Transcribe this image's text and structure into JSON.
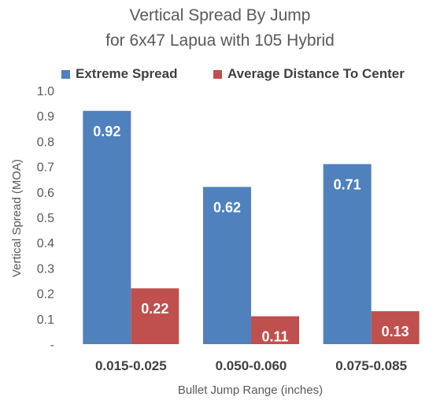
{
  "chart_data": {
    "type": "bar",
    "title": "Vertical Spread By Jump",
    "subtitle": "for 6x47 Lapua with 105 Hybrid",
    "xlabel": "Bullet Jump Range (inches)",
    "ylabel": "Vertical Spread (MOA)",
    "categories": [
      "0.015-0.025",
      "0.050-0.060",
      "0.075-0.085"
    ],
    "series": [
      {
        "name": "Extreme Spread",
        "color": "#4f81bd",
        "values": [
          0.92,
          0.62,
          0.71
        ],
        "labels": [
          "0.92",
          "0.62",
          "0.71"
        ]
      },
      {
        "name": "Average Distance To Center",
        "color": "#c0504d",
        "values": [
          0.22,
          0.11,
          0.13
        ],
        "labels": [
          "0.22",
          "0.11",
          "0.13"
        ]
      }
    ],
    "ylim": [
      0,
      1.0
    ],
    "yticks": [
      {
        "value": 0.0,
        "label": "-"
      },
      {
        "value": 0.1,
        "label": "0.1"
      },
      {
        "value": 0.2,
        "label": "0.2"
      },
      {
        "value": 0.3,
        "label": "0.3"
      },
      {
        "value": 0.4,
        "label": "0.4"
      },
      {
        "value": 0.5,
        "label": "0.5"
      },
      {
        "value": 0.6,
        "label": "0.6"
      },
      {
        "value": 0.7,
        "label": "0.7"
      },
      {
        "value": 0.8,
        "label": "0.8"
      },
      {
        "value": 0.9,
        "label": "0.9"
      },
      {
        "value": 1.0,
        "label": "1.0"
      }
    ],
    "grid": false,
    "legend_position": "top"
  }
}
